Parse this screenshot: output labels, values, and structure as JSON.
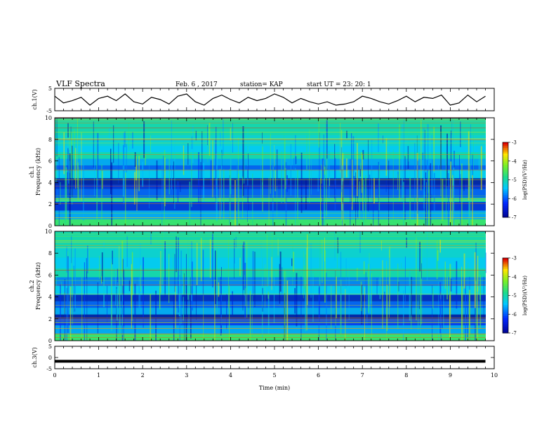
{
  "header": {
    "title": "VLF Spectra",
    "date": "Feb. 6 , 2017",
    "station": "station= KAP",
    "start": "start  UT =   23: 20: 1"
  },
  "colors": {
    "spectrogram_bg": "#1fd98f",
    "panel_frame": "#000000",
    "trace": "#000000"
  },
  "chart_data": [
    {
      "type": "line",
      "panel": "ch1-waveform",
      "ylabel": "ch.1(V)",
      "ylim": [
        -5,
        5
      ],
      "yticks": [
        "5",
        "-5"
      ],
      "x_minutes": [
        0,
        0.2,
        0.4,
        0.6,
        0.8,
        1.0,
        1.2,
        1.4,
        1.6,
        1.8,
        2.0,
        2.2,
        2.4,
        2.6,
        2.8,
        3.0,
        3.2,
        3.4,
        3.6,
        3.8,
        4.0,
        4.2,
        4.4,
        4.6,
        4.8,
        5.0,
        5.2,
        5.4,
        5.6,
        5.8,
        6.0,
        6.2,
        6.4,
        6.6,
        6.8,
        7.0,
        7.2,
        7.4,
        7.6,
        7.8,
        8.0,
        8.2,
        8.4,
        8.6,
        8.8,
        9.0,
        9.2,
        9.4,
        9.6,
        9.8
      ],
      "values": [
        1.5,
        -1.5,
        -0.5,
        1.0,
        -2.5,
        0.5,
        1.5,
        -0.5,
        2.5,
        -1.0,
        -2.0,
        1.0,
        0.0,
        -2.0,
        1.5,
        2.5,
        -1.0,
        -2.5,
        0.5,
        2.0,
        0.0,
        -1.5,
        1.0,
        -0.5,
        0.5,
        2.5,
        1.0,
        -1.5,
        0.5,
        -1.0,
        -2.0,
        -1.0,
        -2.5,
        -2.0,
        -1.0,
        1.5,
        0.5,
        -1.0,
        -2.0,
        -0.5,
        1.5,
        -1.0,
        1.0,
        0.5,
        2.0,
        -2.5,
        -1.5,
        2.0,
        -1.0,
        1.5
      ]
    },
    {
      "type": "heatmap",
      "panel": "ch1-spectrogram",
      "ylabel": "ch.1 Frequency (kHz)",
      "ylim": [
        0,
        10
      ],
      "yticks": [
        "0",
        "2",
        "4",
        "6",
        "8",
        "10"
      ],
      "colorbar_label": "log(PSD)(V²/Hz)",
      "colorbar_range": [
        -7,
        -3
      ],
      "colorbar_ticks": [
        "-3",
        "-4",
        "-5",
        "-6",
        "-7"
      ],
      "bands_khz": [
        {
          "from": 0.0,
          "to": 0.6,
          "log_psd": -4.6
        },
        {
          "from": 0.6,
          "to": 1.4,
          "log_psd": -5.6
        },
        {
          "from": 1.4,
          "to": 2.2,
          "log_psd": -6.4
        },
        {
          "from": 2.2,
          "to": 2.6,
          "log_psd": -5.0
        },
        {
          "from": 2.6,
          "to": 3.4,
          "log_psd": -6.0
        },
        {
          "from": 3.4,
          "to": 3.8,
          "log_psd": -6.4
        },
        {
          "from": 3.8,
          "to": 4.4,
          "log_psd": -6.8
        },
        {
          "from": 4.4,
          "to": 5.2,
          "log_psd": -5.4
        },
        {
          "from": 5.2,
          "to": 5.6,
          "log_psd": -6.0
        },
        {
          "from": 5.6,
          "to": 6.2,
          "log_psd": -5.6
        },
        {
          "from": 6.2,
          "to": 6.8,
          "log_psd": -5.0
        },
        {
          "from": 6.8,
          "to": 7.4,
          "log_psd": -5.4
        },
        {
          "from": 7.4,
          "to": 8.4,
          "log_psd": -5.2
        },
        {
          "from": 8.4,
          "to": 10.0,
          "log_psd": -5.0
        }
      ]
    },
    {
      "type": "heatmap",
      "panel": "ch2-spectrogram",
      "ylabel": "ch.2 Frequency (kHz)",
      "ylim": [
        0,
        10
      ],
      "yticks": [
        "0",
        "2",
        "4",
        "6",
        "8",
        "10"
      ],
      "colorbar_label": "log(PSD)(V²/Hz)",
      "colorbar_range": [
        -7,
        -3
      ],
      "colorbar_ticks": [
        "-3",
        "-4",
        "-5",
        "-6",
        "-7"
      ],
      "bands_khz": [
        {
          "from": 0.0,
          "to": 0.6,
          "log_psd": -4.6
        },
        {
          "from": 0.6,
          "to": 1.4,
          "log_psd": -5.6
        },
        {
          "from": 1.4,
          "to": 2.0,
          "log_psd": -6.2
        },
        {
          "from": 2.0,
          "to": 2.4,
          "log_psd": -6.8
        },
        {
          "from": 2.4,
          "to": 3.0,
          "log_psd": -5.6
        },
        {
          "from": 3.0,
          "to": 3.6,
          "log_psd": -6.0
        },
        {
          "from": 3.6,
          "to": 4.2,
          "log_psd": -6.6
        },
        {
          "from": 4.2,
          "to": 5.0,
          "log_psd": -5.4
        },
        {
          "from": 5.0,
          "to": 5.8,
          "log_psd": -5.8
        },
        {
          "from": 5.8,
          "to": 6.6,
          "log_psd": -5.0
        },
        {
          "from": 6.6,
          "to": 7.6,
          "log_psd": -5.4
        },
        {
          "from": 7.6,
          "to": 8.6,
          "log_psd": -5.2
        },
        {
          "from": 8.6,
          "to": 10.0,
          "log_psd": -5.0
        }
      ]
    },
    {
      "type": "line",
      "panel": "ch3-waveform",
      "ylabel": "ch.3(V)",
      "ylim": [
        -5,
        5
      ],
      "yticks": [
        "5",
        "0",
        "-5"
      ],
      "x_minutes": [
        0,
        9.8
      ],
      "values": [
        -1.7,
        -1.7
      ]
    }
  ],
  "x_axis": {
    "label": "Time  (min)",
    "range": [
      0,
      10
    ],
    "ticks": [
      "0",
      "1",
      "2",
      "3",
      "4",
      "5",
      "6",
      "7",
      "8",
      "9",
      "10"
    ]
  }
}
